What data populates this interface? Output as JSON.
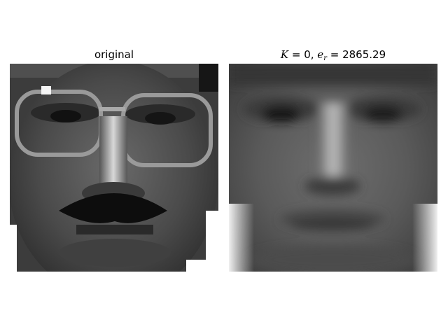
{
  "panels": [
    {
      "title": "original",
      "subject": "grayscale face with glasses and mustache"
    },
    {
      "title_math": {
        "k_symbol": "K",
        "k_value": "0",
        "e_symbol": "e",
        "e_sub": "r",
        "e_value": "2865.29"
      },
      "subject": "blurred mean-face reconstruction"
    }
  ]
}
